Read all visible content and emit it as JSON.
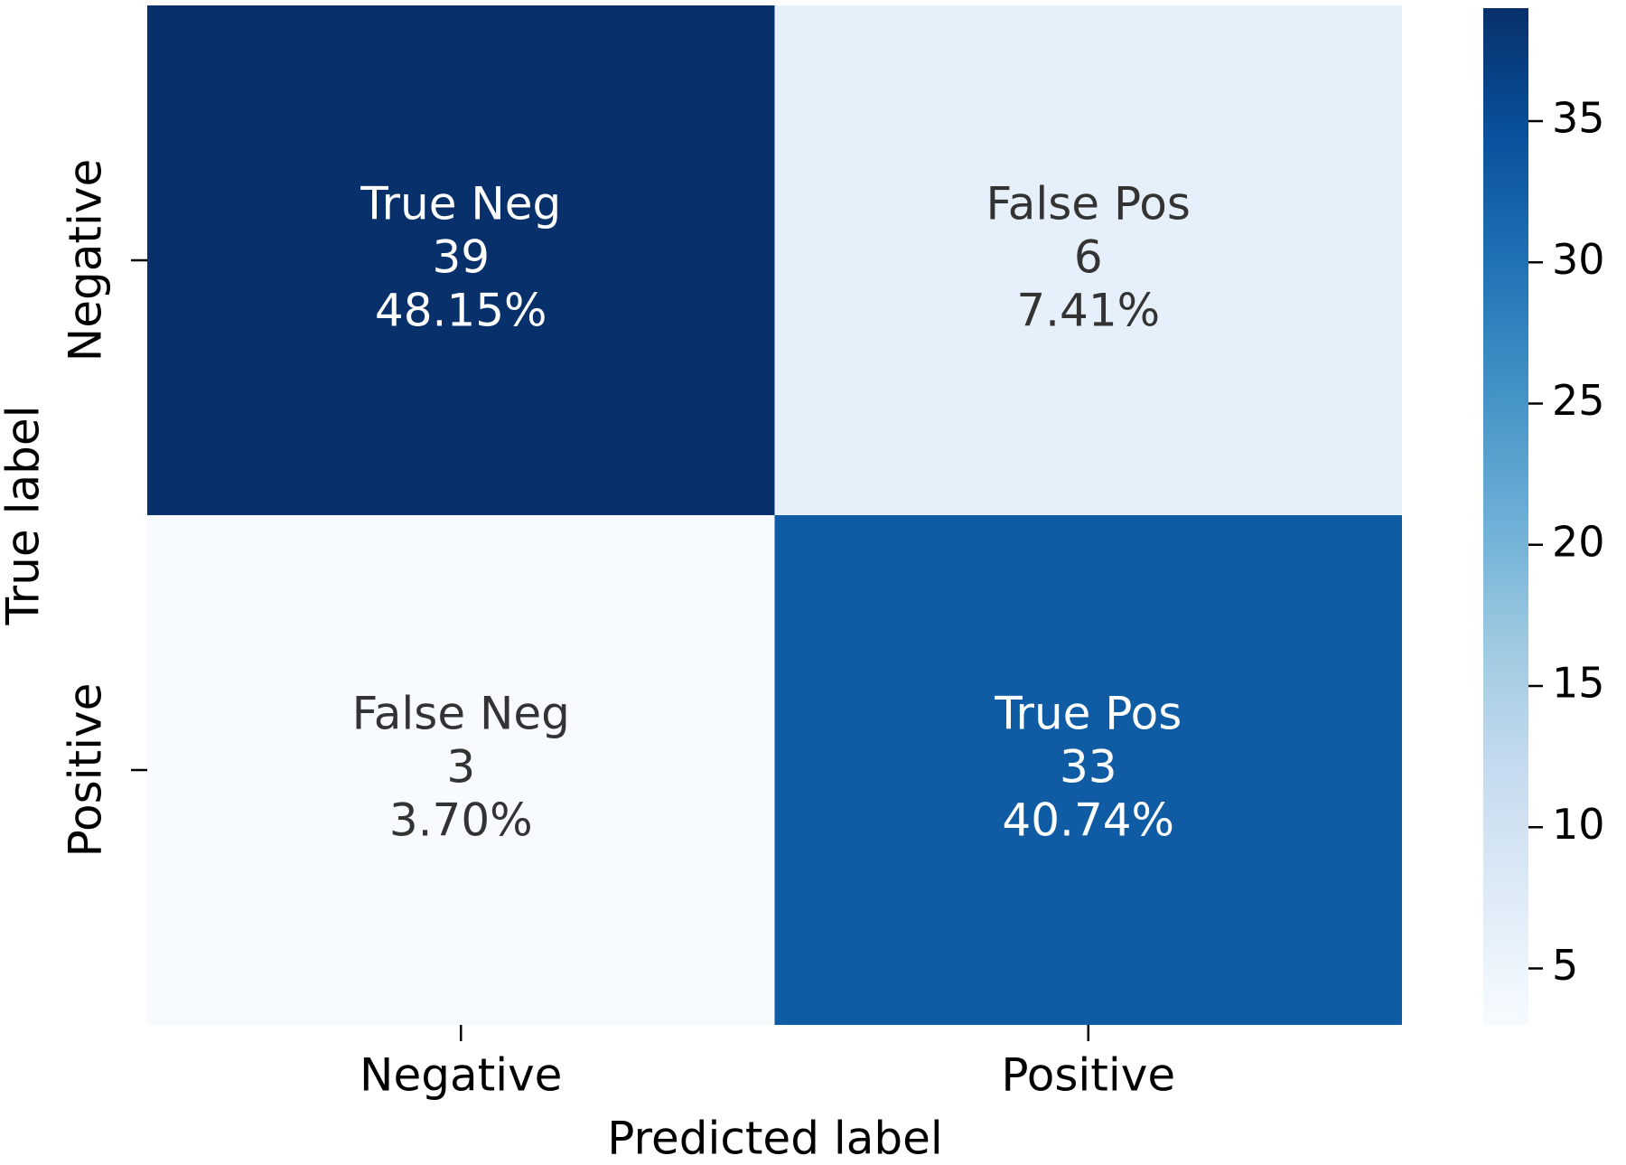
{
  "chart_data": {
    "type": "heatmap",
    "x_categories": [
      "Negative",
      "Positive"
    ],
    "y_categories": [
      "Negative",
      "Positive"
    ],
    "xlabel": "Predicted label",
    "ylabel": "True label",
    "values": [
      [
        39,
        6
      ],
      [
        3,
        33
      ]
    ],
    "cell_names": [
      [
        "True Neg",
        "False Pos"
      ],
      [
        "False Neg",
        "True Pos"
      ]
    ],
    "percent": [
      [
        48.15,
        7.41
      ],
      [
        3.7,
        40.74
      ]
    ],
    "percent_labels": [
      [
        "48.15%",
        "7.41%"
      ],
      [
        "3.70%",
        "40.74%"
      ]
    ],
    "colormap": "Blues",
    "clim": [
      3,
      39
    ],
    "cticks": [
      5,
      10,
      15,
      20,
      25,
      30,
      35
    ]
  }
}
